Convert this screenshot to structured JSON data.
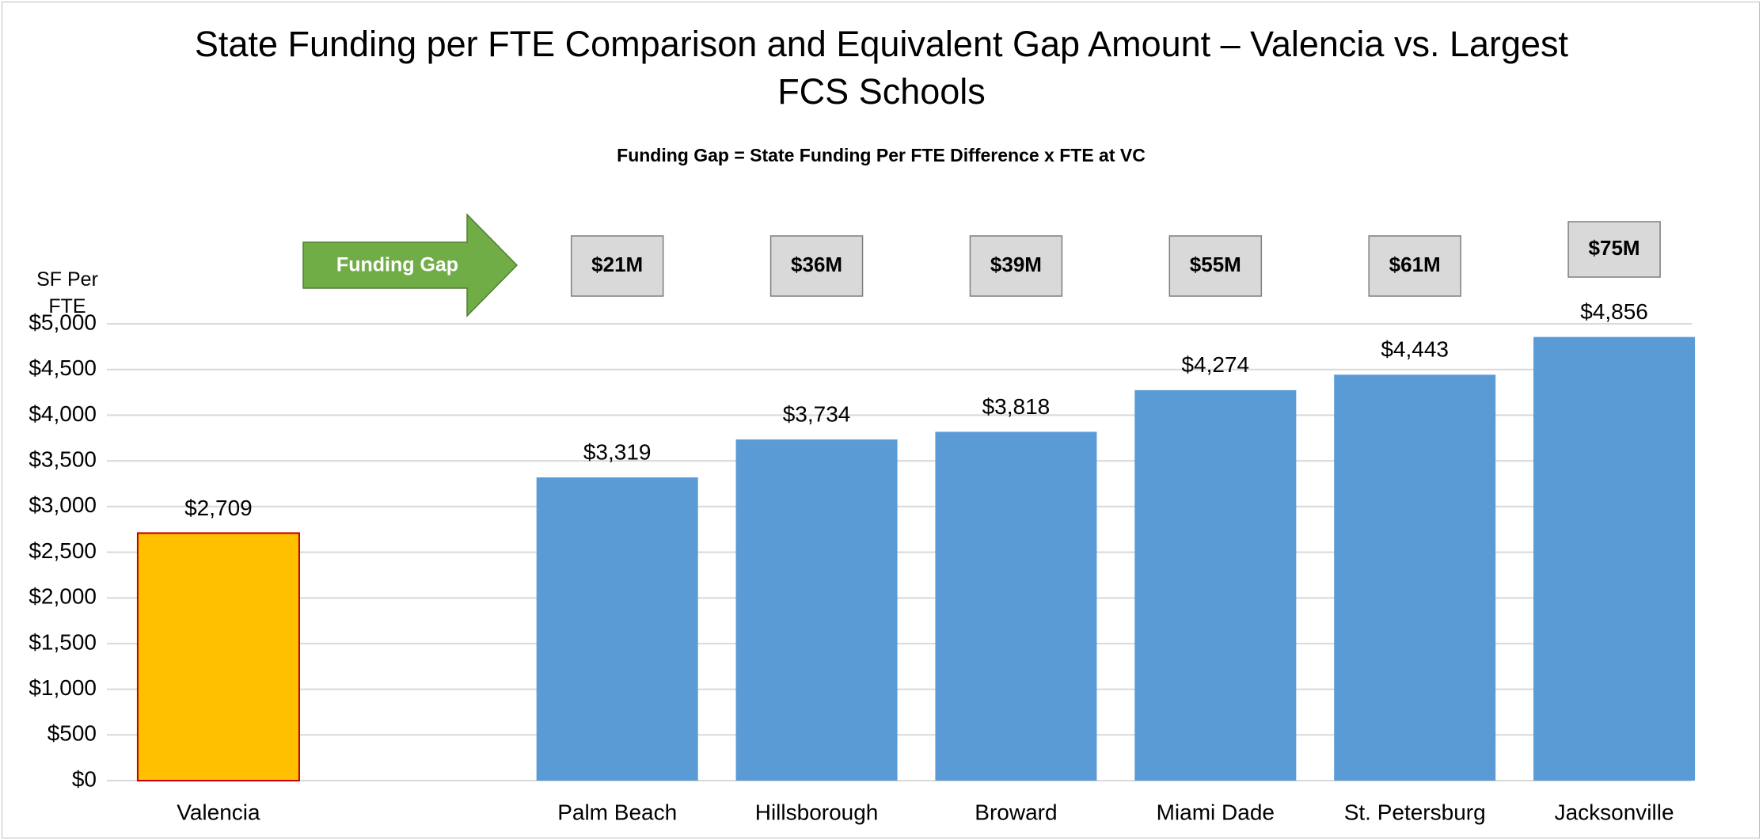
{
  "chart_data": {
    "type": "bar",
    "title": "State Funding per FTE Comparison and Equivalent Gap Amount – Valencia vs. Largest FCS Schools",
    "subtitle": "Funding Gap = State Funding Per FTE Difference x FTE at VC",
    "y_label": "SF Per FTE",
    "categories": [
      "Valencia",
      null,
      "Palm Beach",
      "Hillsborough",
      "Broward",
      "Miami Dade",
      "St. Petersburg",
      "Jacksonville"
    ],
    "values": [
      2709,
      null,
      3319,
      3734,
      3818,
      4274,
      4443,
      4856
    ],
    "value_labels": [
      "$2,709",
      null,
      "$3,319",
      "$3,734",
      "$3,818",
      "$4,274",
      "$4,443",
      "$4,856"
    ],
    "colors": [
      "#FFC000",
      null,
      "#5B9BD5",
      "#5B9BD5",
      "#5B9BD5",
      "#5B9BD5",
      "#5B9BD5",
      "#5B9BD5"
    ],
    "edge_colors": [
      "#C00000",
      null,
      null,
      null,
      null,
      null,
      null,
      null
    ],
    "annotations": {
      "arrow": "Funding Gap",
      "arrow_color": "#70AD47",
      "gaps": [
        null,
        null,
        "$21M",
        "$36M",
        "$39M",
        "$55M",
        "$61M",
        "$75M"
      ]
    },
    "ylim": [
      0,
      5000
    ],
    "yticks": [
      {
        "value": 0,
        "label": "$0"
      },
      {
        "value": 500,
        "label": "$500"
      },
      {
        "value": 1000,
        "label": "$1,000"
      },
      {
        "value": 1500,
        "label": "$1,500"
      },
      {
        "value": 2000,
        "label": "$2,000"
      },
      {
        "value": 2500,
        "label": "$2,500"
      },
      {
        "value": 3000,
        "label": "$3,000"
      },
      {
        "value": 3500,
        "label": "$3,500"
      },
      {
        "value": 4000,
        "label": "$4,000"
      },
      {
        "value": 4500,
        "label": "$4,500"
      },
      {
        "value": 5000,
        "label": "$5,000"
      }
    ],
    "grid": true
  }
}
